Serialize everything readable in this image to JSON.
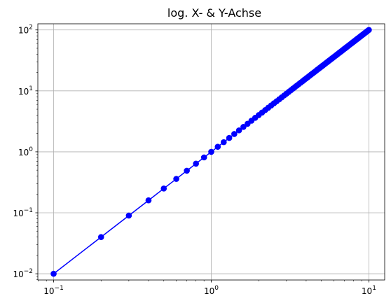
{
  "chart_data": {
    "type": "line",
    "title": "log. X- & Y-Achse",
    "xscale": "log",
    "yscale": "log",
    "xlim": [
      0.0794,
      12.6
    ],
    "ylim": [
      0.0079,
      126
    ],
    "grid": true,
    "line_color": "#0000ff",
    "marker": "circle",
    "x_ticks": [
      {
        "value": 0.1,
        "base": "10",
        "exp": "−1"
      },
      {
        "value": 1,
        "base": "10",
        "exp": "0"
      },
      {
        "value": 10,
        "base": "10",
        "exp": "1"
      }
    ],
    "y_ticks": [
      {
        "value": 0.01,
        "base": "10",
        "exp": "−2"
      },
      {
        "value": 0.1,
        "base": "10",
        "exp": "−1"
      },
      {
        "value": 1,
        "base": "10",
        "exp": "0"
      },
      {
        "value": 10,
        "base": "10",
        "exp": "1"
      },
      {
        "value": 100,
        "base": "10",
        "exp": "2"
      }
    ],
    "series": [
      {
        "function": "y = x^2",
        "x_start": 0.1,
        "x_end": 10.0,
        "x_step": 0.1,
        "x": [],
        "y": []
      }
    ]
  }
}
